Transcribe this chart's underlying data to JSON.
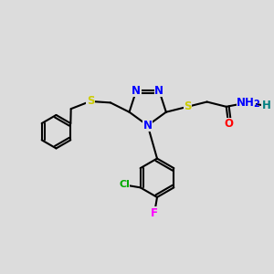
{
  "background_color": "#dcdcdc",
  "atom_colors": {
    "N": "#0000ff",
    "S": "#cccc00",
    "O": "#ff0000",
    "Cl": "#00aa00",
    "F": "#ff00ff",
    "H": "#008080",
    "C": "#000000"
  },
  "bond_color": "#000000",
  "bond_width": 1.5,
  "font_size_atoms": 8.5
}
